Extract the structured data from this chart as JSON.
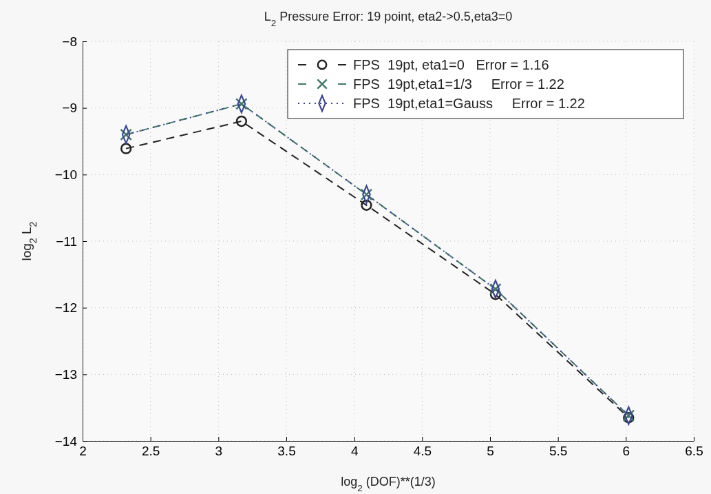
{
  "chart_data": {
    "type": "line",
    "title": "L$_{2}$ Pressure Error: 19 point, eta2->0.5,eta3=0",
    "xlabel": "log$_{2}$ (DOF)**(1/3)",
    "ylabel": "log$_{2}$ L$_{2}$",
    "x": [
      2.32,
      3.17,
      4.09,
      5.04,
      6.02
    ],
    "series": [
      {
        "name": "FPS  19pt, eta1=0   Error = 1.16",
        "color": "#222222",
        "values": [
          -9.61,
          -9.2,
          -10.46,
          -11.8,
          -13.65
        ],
        "marker": "circle",
        "line_style": "dashed"
      },
      {
        "name": "FPS  19pt,eta1=1/3     Error = 1.22",
        "color": "#3f7a66",
        "values": [
          -9.4,
          -8.94,
          -10.3,
          -11.72,
          -13.62
        ],
        "marker": "cross",
        "line_style": "dashed"
      },
      {
        "name": "FPS  19pt,eta1=Gauss     Error = 1.22",
        "color": "#3a4494",
        "values": [
          -9.4,
          -8.94,
          -10.3,
          -11.72,
          -13.62
        ],
        "marker": "diamond",
        "line_style": "dotted"
      }
    ],
    "xlim": [
      2,
      6.5
    ],
    "xticks": [
      2,
      2.5,
      3,
      3.5,
      4,
      4.5,
      5,
      5.5,
      6,
      6.5
    ],
    "ylim": [
      -14,
      -8
    ],
    "yticks": [
      -14,
      -13,
      -12,
      -11,
      -10,
      -9,
      -8
    ],
    "grid": true,
    "legend": "top right"
  }
}
